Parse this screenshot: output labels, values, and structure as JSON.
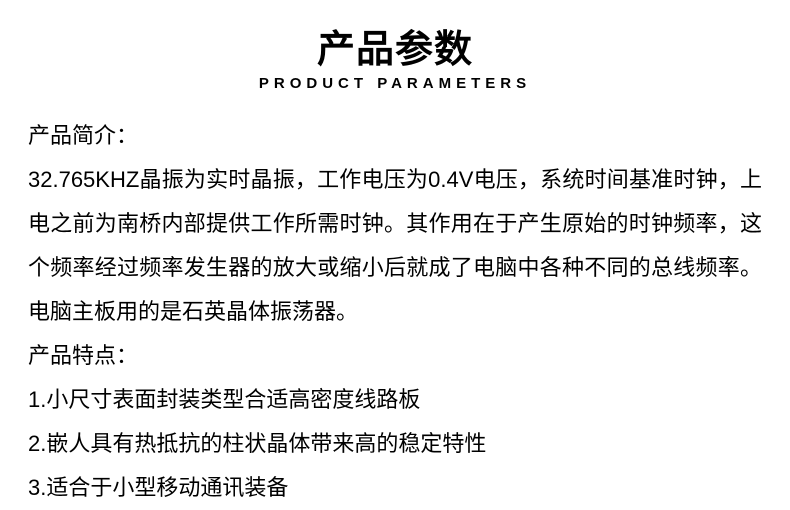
{
  "title": {
    "cn": "产品参数",
    "en": "PRODUCT PARAMETERS"
  },
  "intro": {
    "label": "产品简介：",
    "body": "32.765KHZ晶振为实时晶振，工作电压为0.4V电压，系统时间基准时钟，上电之前为南桥内部提供工作所需时钟。其作用在于产生原始的时钟频率，这个频率经过频率发生器的放大或缩小后就成了电脑中各种不同的总线频率。电脑主板用的是石英晶体振荡器。"
  },
  "features": {
    "label": "产品特点：",
    "items": [
      "1.小尺寸表面封装类型合适高密度线路板",
      "2.嵌人具有热抵抗的柱状晶体带来高的稳定特性",
      "3.适合于小型移动通讯装备"
    ]
  },
  "styles": {
    "title_cn_fontsize": 38,
    "title_en_fontsize": 15,
    "title_en_letterspacing": 5,
    "body_fontsize": 22,
    "line_height": 2.0,
    "text_color": "#000000",
    "background_color": "#ffffff"
  }
}
